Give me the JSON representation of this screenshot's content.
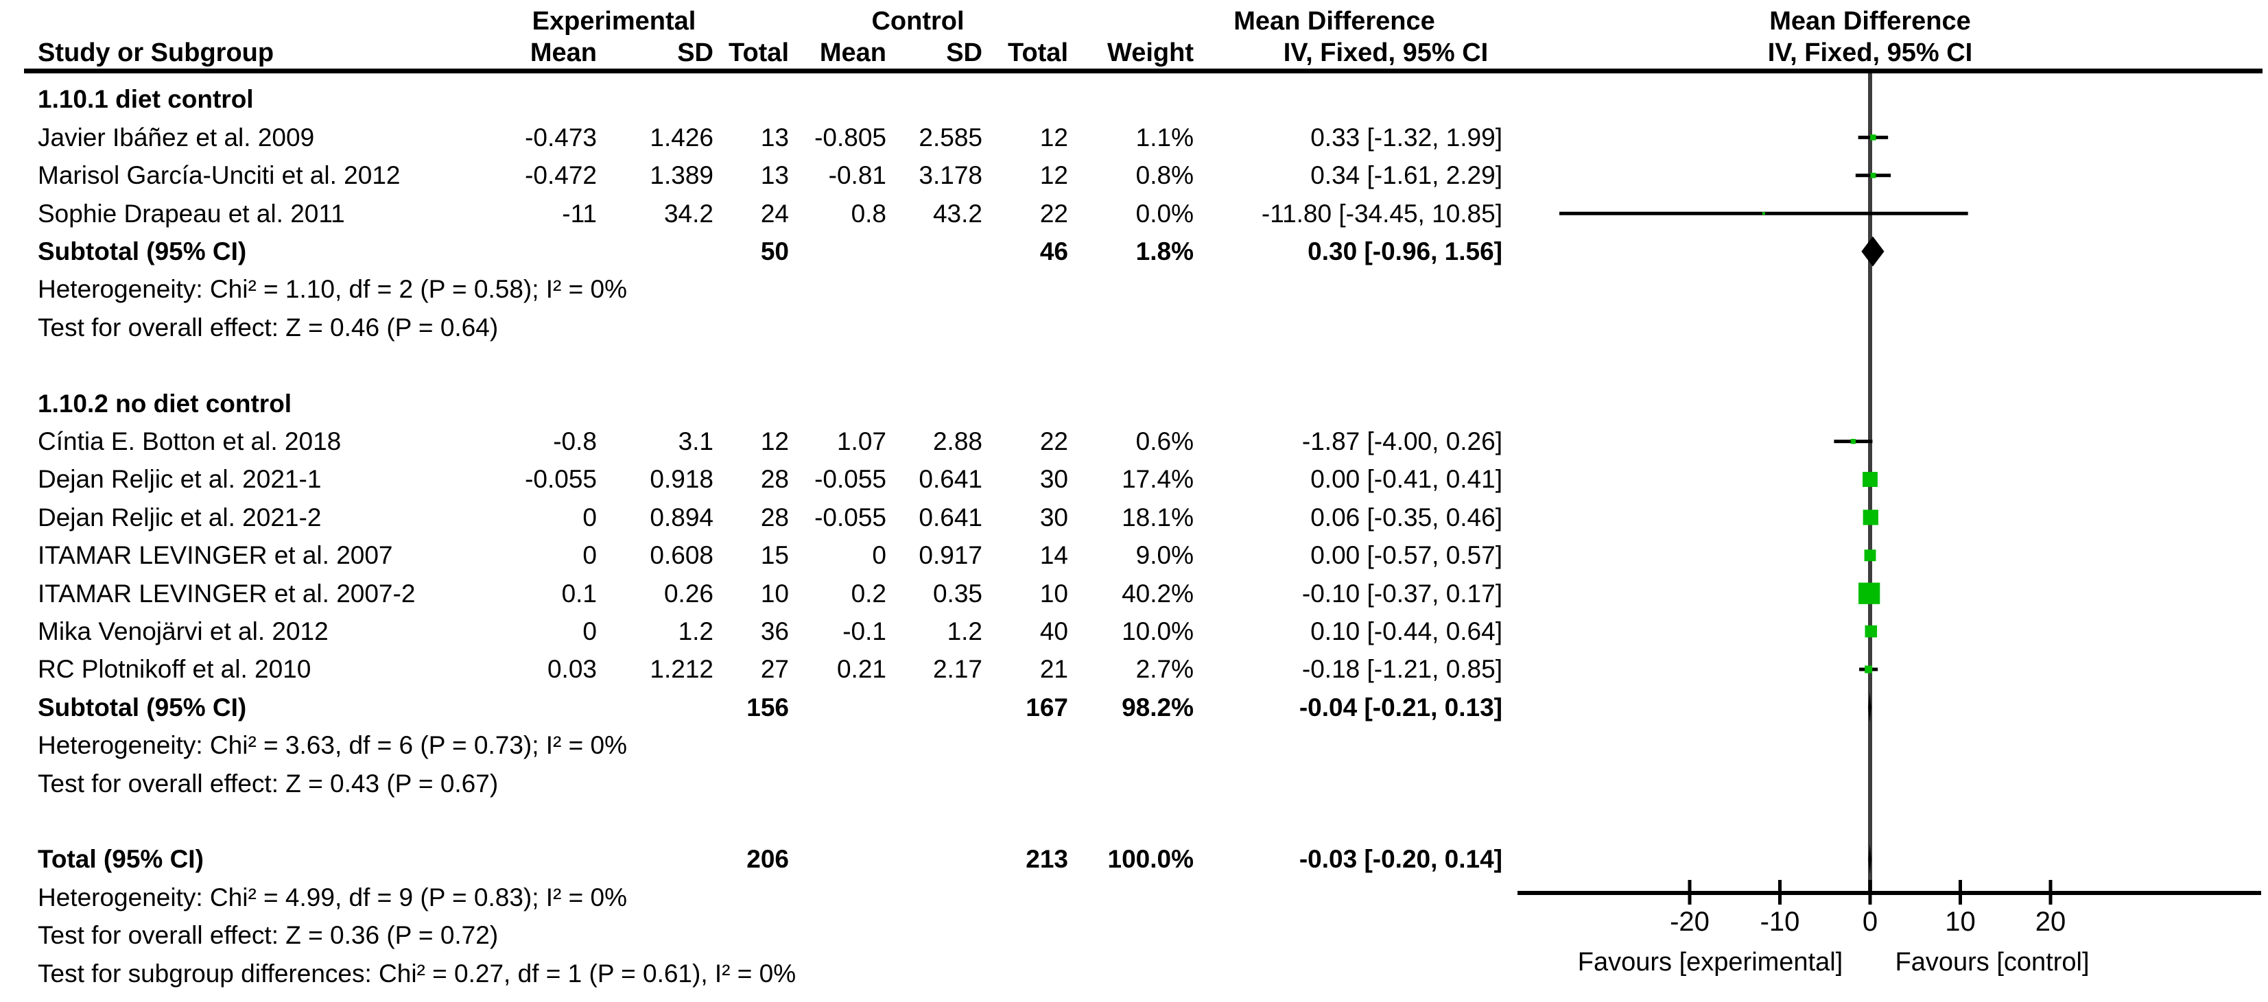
{
  "chart_data": {
    "type": "forest",
    "effect_label": "Mean Difference",
    "model_label": "IV, Fixed, 95% CI",
    "columns": {
      "exp_group": "Experimental",
      "ctrl_group": "Control",
      "study": "Study or Subgroup",
      "mean": "Mean",
      "sd": "SD",
      "total": "Total",
      "weight": "Weight"
    },
    "axis": {
      "ticks": [
        -20,
        -10,
        0,
        10,
        20
      ],
      "xlim": [
        -20,
        20
      ],
      "favours_left": "Favours [experimental]",
      "favours_right": "Favours [control]"
    },
    "marker_color": "#00bd00",
    "rows": [
      {
        "type": "section",
        "study": "1.10.1 diet control"
      },
      {
        "type": "study",
        "study": "Javier Ibáñez et al. 2009",
        "e_mean": "-0.473",
        "e_sd": "1.426",
        "e_total": "13",
        "c_mean": "-0.805",
        "c_sd": "2.585",
        "c_total": "12",
        "weight": "1.1%",
        "ci_text": "0.33 [-1.32, 1.99]",
        "md": 0.33,
        "lo": -1.32,
        "hi": 1.99,
        "w": 1.1
      },
      {
        "type": "study",
        "study": "Marisol García-Unciti et al. 2012",
        "e_mean": "-0.472",
        "e_sd": "1.389",
        "e_total": "13",
        "c_mean": "-0.81",
        "c_sd": "3.178",
        "c_total": "12",
        "weight": "0.8%",
        "ci_text": "0.34 [-1.61, 2.29]",
        "md": 0.34,
        "lo": -1.61,
        "hi": 2.29,
        "w": 0.8
      },
      {
        "type": "study",
        "study": "Sophie Drapeau et al. 2011",
        "e_mean": "-11",
        "e_sd": "34.2",
        "e_total": "24",
        "c_mean": "0.8",
        "c_sd": "43.2",
        "c_total": "22",
        "weight": "0.0%",
        "ci_text": "-11.80 [-34.45, 10.85]",
        "md": -11.8,
        "lo": -34.45,
        "hi": 10.85,
        "w": 0.0
      },
      {
        "type": "subtotal",
        "study": "Subtotal (95% CI)",
        "e_total": "50",
        "c_total": "46",
        "weight": "1.8%",
        "ci_text": "0.30 [-0.96, 1.56]",
        "md": 0.3,
        "lo": -0.96,
        "hi": 1.56
      },
      {
        "type": "note",
        "study": "Heterogeneity: Chi² = 1.10, df = 2 (P = 0.58); I² = 0%"
      },
      {
        "type": "note",
        "study": "Test for overall effect: Z = 0.46 (P = 0.64)"
      },
      {
        "type": "spacer"
      },
      {
        "type": "section",
        "study": "1.10.2 no diet control"
      },
      {
        "type": "study",
        "study": "Cíntia E. Botton et al. 2018",
        "e_mean": "-0.8",
        "e_sd": "3.1",
        "e_total": "12",
        "c_mean": "1.07",
        "c_sd": "2.88",
        "c_total": "22",
        "weight": "0.6%",
        "ci_text": "-1.87 [-4.00, 0.26]",
        "md": -1.87,
        "lo": -4.0,
        "hi": 0.26,
        "w": 0.6
      },
      {
        "type": "study",
        "study": "Dejan Reljic et al. 2021-1",
        "e_mean": "-0.055",
        "e_sd": "0.918",
        "e_total": "28",
        "c_mean": "-0.055",
        "c_sd": "0.641",
        "c_total": "30",
        "weight": "17.4%",
        "ci_text": "0.00 [-0.41, 0.41]",
        "md": 0.0,
        "lo": -0.41,
        "hi": 0.41,
        "w": 17.4
      },
      {
        "type": "study",
        "study": "Dejan Reljic et al. 2021-2",
        "e_mean": "0",
        "e_sd": "0.894",
        "e_total": "28",
        "c_mean": "-0.055",
        "c_sd": "0.641",
        "c_total": "30",
        "weight": "18.1%",
        "ci_text": "0.06 [-0.35, 0.46]",
        "md": 0.06,
        "lo": -0.35,
        "hi": 0.46,
        "w": 18.1
      },
      {
        "type": "study",
        "study": "ITAMAR LEVINGER et al. 2007",
        "e_mean": "0",
        "e_sd": "0.608",
        "e_total": "15",
        "c_mean": "0",
        "c_sd": "0.917",
        "c_total": "14",
        "weight": "9.0%",
        "ci_text": "0.00 [-0.57, 0.57]",
        "md": 0.0,
        "lo": -0.57,
        "hi": 0.57,
        "w": 9.0
      },
      {
        "type": "study",
        "study": "ITAMAR LEVINGER et al. 2007-2",
        "e_mean": "0.1",
        "e_sd": "0.26",
        "e_total": "10",
        "c_mean": "0.2",
        "c_sd": "0.35",
        "c_total": "10",
        "weight": "40.2%",
        "ci_text": "-0.10 [-0.37, 0.17]",
        "md": -0.1,
        "lo": -0.37,
        "hi": 0.17,
        "w": 40.2
      },
      {
        "type": "study",
        "study": "Mika Venojärvi et al. 2012",
        "e_mean": "0",
        "e_sd": "1.2",
        "e_total": "36",
        "c_mean": "-0.1",
        "c_sd": "1.2",
        "c_total": "40",
        "weight": "10.0%",
        "ci_text": "0.10 [-0.44, 0.64]",
        "md": 0.1,
        "lo": -0.44,
        "hi": 0.64,
        "w": 10.0
      },
      {
        "type": "study",
        "study": "RC Plotnikoff et al. 2010",
        "e_mean": "0.03",
        "e_sd": "1.212",
        "e_total": "27",
        "c_mean": "0.21",
        "c_sd": "2.17",
        "c_total": "21",
        "weight": "2.7%",
        "ci_text": "-0.18 [-1.21, 0.85]",
        "md": -0.18,
        "lo": -1.21,
        "hi": 0.85,
        "w": 2.7
      },
      {
        "type": "subtotal",
        "study": "Subtotal (95% CI)",
        "e_total": "156",
        "c_total": "167",
        "weight": "98.2%",
        "ci_text": "-0.04 [-0.21, 0.13]",
        "md": -0.04,
        "lo": -0.21,
        "hi": 0.13
      },
      {
        "type": "note",
        "study": "Heterogeneity: Chi² = 3.63, df = 6 (P = 0.73); I² = 0%"
      },
      {
        "type": "note",
        "study": "Test for overall effect: Z = 0.43 (P = 0.67)"
      },
      {
        "type": "spacer"
      },
      {
        "type": "total",
        "study": "Total (95% CI)",
        "e_total": "206",
        "c_total": "213",
        "weight": "100.0%",
        "ci_text": "-0.03 [-0.20, 0.14]",
        "md": -0.03,
        "lo": -0.2,
        "hi": 0.14
      },
      {
        "type": "note",
        "study": "Heterogeneity: Chi² = 4.99, df = 9 (P = 0.83); I² = 0%"
      },
      {
        "type": "note",
        "study": "Test for overall effect: Z = 0.36 (P = 0.72)"
      },
      {
        "type": "note",
        "study": "Test for subgroup differences: Chi² = 0.27, df = 1 (P = 0.61), I² = 0%"
      }
    ]
  }
}
